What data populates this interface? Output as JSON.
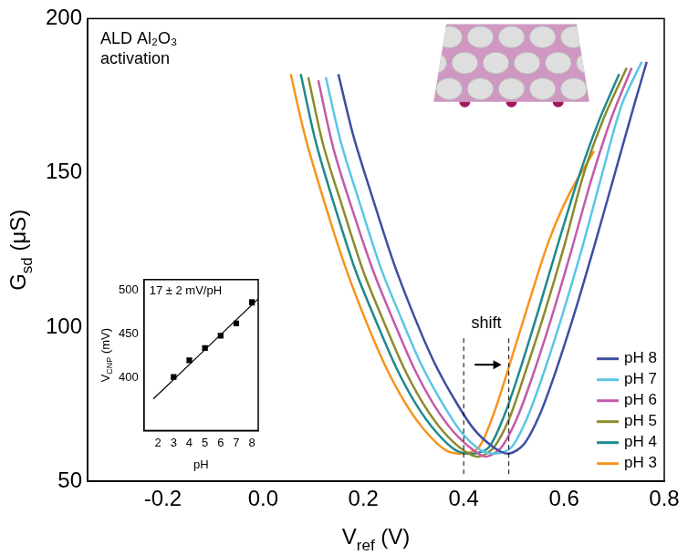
{
  "chart_data": [
    {
      "type": "line",
      "xlabel": "Vref (V)",
      "ylabel": "Gsd (μS)",
      "xlim": [
        -0.35,
        0.8
      ],
      "xticks": [
        -0.2,
        {
          "value": 0,
          "label": "0.0"
        },
        0.2,
        0.4,
        0.6,
        0.8
      ],
      "ylim": [
        50,
        200
      ],
      "yticks": [
        50,
        100,
        150,
        200
      ],
      "grid": false,
      "legend": "lower right",
      "annotations": [
        {
          "text": "ALD Al₂O₃ activation"
        },
        {
          "text": "shift",
          "x": [
            0.4,
            0.49
          ]
        }
      ],
      "series": [
        {
          "name": "pH 8",
          "color": "#3f4ea1",
          "marker": "none",
          "line_style": "solid",
          "x": [
            0.15,
            0.18,
            0.22,
            0.26,
            0.3,
            0.34,
            0.38,
            0.42,
            0.46,
            0.49,
            0.52,
            0.55,
            0.58,
            0.62,
            0.66,
            0.7,
            0.74,
            0.765
          ],
          "values": [
            182,
            162,
            141,
            121,
            104,
            89,
            77,
            67,
            61,
            59,
            62,
            71,
            84,
            104,
            126,
            149,
            172,
            186
          ]
        },
        {
          "name": "pH 7",
          "color": "#5bc5e6",
          "marker": "none",
          "line_style": "solid",
          "x": [
            0.125,
            0.155,
            0.195,
            0.235,
            0.275,
            0.315,
            0.355,
            0.395,
            0.435,
            0.465,
            0.495,
            0.525,
            0.555,
            0.595,
            0.635,
            0.675,
            0.715,
            0.755
          ],
          "values": [
            181,
            160,
            139,
            119,
            103,
            88,
            76,
            66,
            60,
            59,
            61,
            70,
            83,
            103,
            125,
            149,
            172,
            186
          ]
        },
        {
          "name": "pH 6",
          "color": "#c35ba9",
          "marker": "none",
          "line_style": "solid",
          "x": [
            0.11,
            0.14,
            0.18,
            0.22,
            0.26,
            0.3,
            0.34,
            0.38,
            0.42,
            0.445,
            0.475,
            0.505,
            0.535,
            0.575,
            0.615,
            0.655,
            0.695,
            0.735
          ],
          "values": [
            180,
            158,
            137,
            118,
            102,
            87,
            75,
            66,
            60,
            58,
            61,
            70,
            83,
            103,
            125,
            148,
            168,
            184
          ]
        },
        {
          "name": "pH 5",
          "color": "#8b8b2c",
          "marker": "none",
          "line_style": "solid",
          "x": [
            0.09,
            0.12,
            0.16,
            0.2,
            0.24,
            0.28,
            0.32,
            0.36,
            0.4,
            0.43,
            0.46,
            0.49,
            0.52,
            0.56,
            0.6,
            0.64,
            0.68,
            0.725
          ],
          "values": [
            181,
            159,
            138,
            118,
            102,
            87,
            75,
            66,
            60,
            58,
            61,
            70,
            84,
            104,
            126,
            150,
            168,
            184
          ]
        },
        {
          "name": "pH 4",
          "color": "#1e8a8c",
          "marker": "none",
          "line_style": "solid",
          "x": [
            0.075,
            0.105,
            0.145,
            0.185,
            0.225,
            0.265,
            0.305,
            0.345,
            0.385,
            0.42,
            0.45,
            0.48,
            0.51,
            0.55,
            0.59,
            0.63,
            0.67,
            0.71
          ],
          "values": [
            182,
            160,
            138,
            118,
            102,
            87,
            75,
            66,
            60,
            59,
            61,
            71,
            85,
            106,
            128,
            149,
            167,
            182
          ]
        },
        {
          "name": "pH 3",
          "color": "#f7941d",
          "marker": "none",
          "line_style": "solid",
          "x": [
            0.055,
            0.085,
            0.125,
            0.165,
            0.205,
            0.245,
            0.285,
            0.325,
            0.365,
            0.4,
            0.43,
            0.46,
            0.49,
            0.53,
            0.57,
            0.61,
            0.66
          ],
          "values": [
            182,
            161,
            139,
            119,
            102,
            87,
            75,
            66,
            60,
            59,
            61,
            72,
            87,
            108,
            128,
            143,
            157
          ]
        }
      ]
    },
    {
      "type": "scatter",
      "xlabel": "pH",
      "ylabel": "VCNP (mV)",
      "xlim": [
        1.1,
        8.4
      ],
      "xticks": [
        2,
        3,
        4,
        5,
        6,
        7,
        8
      ],
      "ylim": [
        340,
        512
      ],
      "yticks": [
        400,
        450,
        500
      ],
      "grid": false,
      "annotations": [
        {
          "text": "17 ± 2 mV/pH"
        }
      ],
      "series": [
        {
          "color": "#000000",
          "marker": "square",
          "x": [
            3,
            4,
            5,
            6,
            7,
            8
          ],
          "values": [
            401,
            420,
            434,
            448,
            462,
            486
          ],
          "errors": [
            2,
            2,
            2,
            2,
            2,
            3
          ]
        },
        {
          "type": "line",
          "color": "#000000",
          "marker": "none",
          "line_style": "solid",
          "x": [
            1.7,
            8.4
          ],
          "values": [
            376,
            490
          ]
        }
      ]
    }
  ]
}
